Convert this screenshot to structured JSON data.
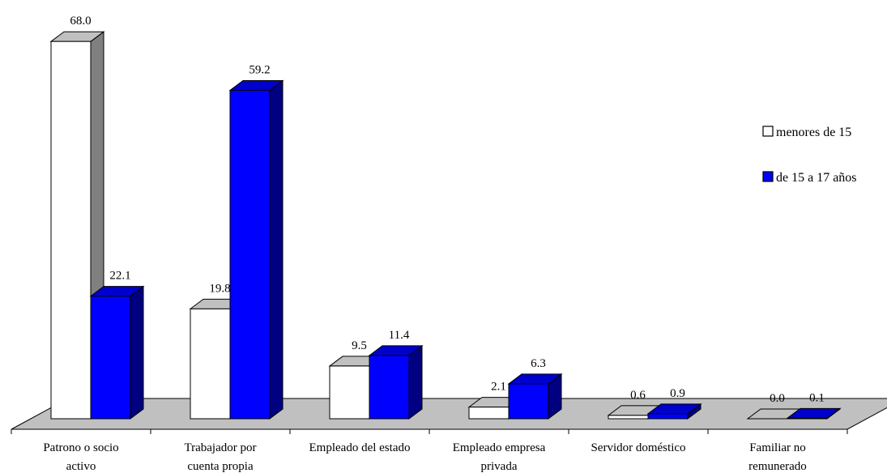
{
  "chart_data": {
    "type": "bar",
    "style": "3d-clustered-column",
    "categories": [
      [
        "Patrono o socio",
        "activo"
      ],
      [
        "Trabajador por",
        "cuenta propia"
      ],
      [
        "Empleado del estado"
      ],
      [
        "Empleado empresa",
        "privada"
      ],
      [
        "Servidor doméstico"
      ],
      [
        "Familiar no",
        "remunerado"
      ]
    ],
    "series": [
      {
        "name": "menores de 15",
        "values": [
          68.0,
          19.8,
          9.5,
          2.1,
          0.6,
          0.0
        ],
        "value_labels": [
          "68.0",
          "19.8",
          "9.5",
          "2.1",
          "0.6",
          "0.0"
        ]
      },
      {
        "name": "de 15 a 17 años",
        "values": [
          22.1,
          59.2,
          11.4,
          6.3,
          0.9,
          0.1
        ],
        "value_labels": [
          "22.1",
          "59.2",
          "11.4",
          "6.3",
          "0.9",
          "0.1"
        ]
      }
    ],
    "ylim": [
      0,
      70
    ],
    "grid": false,
    "legend": "right",
    "colors": {
      "series1_front": "#ffffff",
      "series1_top": "#c0c0c0",
      "series1_side": "#808080",
      "series2_front": "#0000ff",
      "series2_top": "#0000cc",
      "series2_side": "#000080",
      "floor": "#c0c0c0",
      "outline": "#000000"
    }
  }
}
